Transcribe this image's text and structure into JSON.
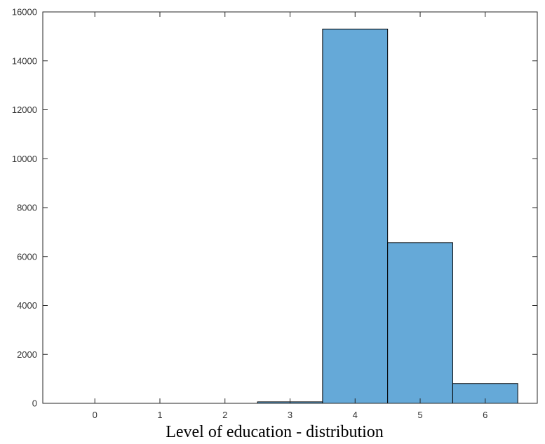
{
  "chart_data": {
    "type": "bar",
    "title": "",
    "xlabel": "Level of education - distribution",
    "ylabel": "",
    "categories": [
      "0",
      "1",
      "2",
      "3",
      "4",
      "5",
      "6"
    ],
    "values": [
      0,
      0,
      0,
      60,
      15300,
      6570,
      810
    ],
    "bar_range": [
      3,
      6
    ],
    "xlim": [
      -0.8,
      6.8
    ],
    "ylim": [
      0,
      16000
    ],
    "yticks": [
      0,
      2000,
      4000,
      6000,
      8000,
      10000,
      12000,
      14000,
      16000
    ],
    "xticks": [
      0,
      1,
      2,
      3,
      4,
      5,
      6
    ],
    "grid": false,
    "bar_color": "#65a9d8",
    "edge_color": "#000000"
  }
}
